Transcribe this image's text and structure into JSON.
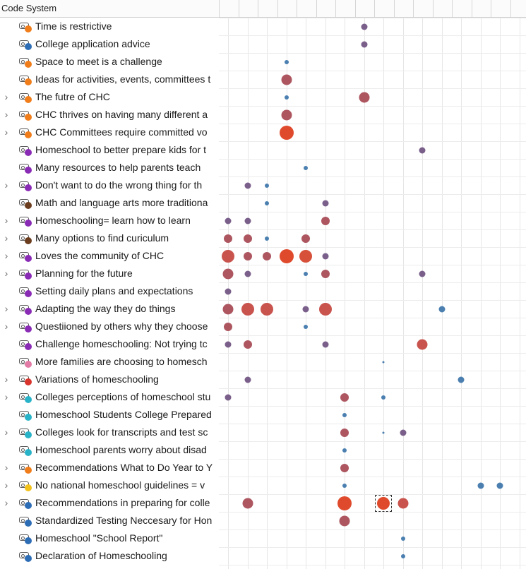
{
  "header": {
    "title": "Code System"
  },
  "colors": {
    "code_orange": "#f07d1a",
    "code_blue": "#2d6db5",
    "code_purple": "#8a2bb5",
    "code_brown": "#6b3d1e",
    "code_pink": "#e37aa6",
    "code_red": "#d9342b",
    "code_teal": "#29b3c8",
    "code_yellow": "#f2c21b",
    "bubble_gray_purple": "#7a5f8a",
    "bubble_brown_red": "#ad5660",
    "bubble_red": "#e04a2c",
    "bubble_blue": "#4a7fb0"
  },
  "rows": [
    {
      "label": "Time is restrictive",
      "expandable": false,
      "dot": "#f07d1a",
      "bubbles": [
        {
          "col": 7,
          "size": "sm",
          "color": "#7a5f8a"
        }
      ]
    },
    {
      "label": "College application advice",
      "expandable": false,
      "dot": "#2d6db5",
      "bubbles": [
        {
          "col": 7,
          "size": "sm",
          "color": "#7a5f8a"
        }
      ]
    },
    {
      "label": "Space to meet is a challenge",
      "expandable": false,
      "dot": "#f07d1a",
      "bubbles": [
        {
          "col": 3,
          "size": "xs",
          "color": "#4a7fb0"
        }
      ]
    },
    {
      "label": "Ideas for activities, events, committees t",
      "expandable": false,
      "dot": "#f07d1a",
      "bubbles": [
        {
          "col": 3,
          "size": "md",
          "color": "#ad5660"
        }
      ]
    },
    {
      "label": "The futre of CHC",
      "expandable": true,
      "dot": "#f07d1a",
      "bubbles": [
        {
          "col": 3,
          "size": "xs",
          "color": "#4a7fb0"
        },
        {
          "col": 7,
          "size": "md",
          "color": "#ad5660"
        }
      ]
    },
    {
      "label": "CHC thrives on having many different a",
      "expandable": true,
      "dot": "#f07d1a",
      "bubbles": [
        {
          "col": 3,
          "size": "md",
          "color": "#ad5660"
        }
      ]
    },
    {
      "label": "CHC Committees require committed vo",
      "expandable": true,
      "dot": "#f07d1a",
      "bubbles": [
        {
          "col": 3,
          "size": "lg",
          "color": "#e04a2c"
        }
      ]
    },
    {
      "label": "Homeschool to better prepare kids for t",
      "expandable": false,
      "dot": "#8a2bb5",
      "bubbles": [
        {
          "col": 10,
          "size": "sm",
          "color": "#7a5f8a"
        }
      ]
    },
    {
      "label": "Many resources to help parents teach",
      "expandable": false,
      "dot": "#8a2bb5",
      "bubbles": [
        {
          "col": 4,
          "size": "xs",
          "color": "#4a7fb0"
        }
      ]
    },
    {
      "label": "Don't want to do the wrong thing for th",
      "expandable": true,
      "dot": "#8a2bb5",
      "bubbles": [
        {
          "col": 1,
          "size": "sm",
          "color": "#7a5f8a"
        },
        {
          "col": 2,
          "size": "xs",
          "color": "#4a7fb0"
        }
      ]
    },
    {
      "label": "Math and language arts more traditiona",
      "expandable": false,
      "dot": "#6b3d1e",
      "bubbles": [
        {
          "col": 2,
          "size": "xs",
          "color": "#4a7fb0"
        },
        {
          "col": 5,
          "size": "sm",
          "color": "#7a5f8a"
        }
      ]
    },
    {
      "label": "Homeschooling= learn how to learn",
      "expandable": true,
      "dot": "#8a2bb5",
      "bubbles": [
        {
          "col": 0,
          "size": "sm",
          "color": "#7a5f8a"
        },
        {
          "col": 1,
          "size": "sm",
          "color": "#7a5f8a"
        },
        {
          "col": 5,
          "size": "sm2",
          "color": "#ad5660"
        }
      ]
    },
    {
      "label": "Many options to find curiculum",
      "expandable": true,
      "dot": "#6b3d1e",
      "bubbles": [
        {
          "col": 0,
          "size": "sm2",
          "color": "#ad5660"
        },
        {
          "col": 1,
          "size": "sm2",
          "color": "#ad5660"
        },
        {
          "col": 2,
          "size": "xs",
          "color": "#4a7fb0"
        },
        {
          "col": 4,
          "size": "sm2",
          "color": "#ad5660"
        }
      ]
    },
    {
      "label": "Loves the community of CHC",
      "expandable": true,
      "dot": "#8a2bb5",
      "bubbles": [
        {
          "col": 0,
          "size": "md2",
          "color": "#c9544e"
        },
        {
          "col": 1,
          "size": "sm2",
          "color": "#ad5660"
        },
        {
          "col": 2,
          "size": "sm2",
          "color": "#ad5660"
        },
        {
          "col": 3,
          "size": "lg",
          "color": "#e04a2c"
        },
        {
          "col": 4,
          "size": "md2",
          "color": "#d6503a"
        },
        {
          "col": 5,
          "size": "sm",
          "color": "#7a5f8a"
        }
      ]
    },
    {
      "label": "Planning for the future",
      "expandable": true,
      "dot": "#8a2bb5",
      "bubbles": [
        {
          "col": 0,
          "size": "md",
          "color": "#ad5660"
        },
        {
          "col": 1,
          "size": "sm",
          "color": "#7a5f8a"
        },
        {
          "col": 4,
          "size": "xs",
          "color": "#4a7fb0"
        },
        {
          "col": 5,
          "size": "sm2",
          "color": "#ad5660"
        },
        {
          "col": 10,
          "size": "sm",
          "color": "#7a5f8a"
        }
      ]
    },
    {
      "label": "Setting daily plans and expectations",
      "expandable": false,
      "dot": "#8a2bb5",
      "bubbles": [
        {
          "col": 0,
          "size": "sm",
          "color": "#7a5f8a"
        }
      ]
    },
    {
      "label": "Adapting the way they do things",
      "expandable": true,
      "dot": "#8a2bb5",
      "bubbles": [
        {
          "col": 0,
          "size": "md",
          "color": "#ad5660"
        },
        {
          "col": 1,
          "size": "md2",
          "color": "#c9544e"
        },
        {
          "col": 2,
          "size": "md2",
          "color": "#c9544e"
        },
        {
          "col": 4,
          "size": "sm",
          "color": "#7a5f8a"
        },
        {
          "col": 5,
          "size": "md2",
          "color": "#c9544e"
        },
        {
          "col": 11,
          "size": "sm",
          "color": "#4a7fb0"
        }
      ]
    },
    {
      "label": "Questiioned by others why they choose",
      "expandable": true,
      "dot": "#8a2bb5",
      "bubbles": [
        {
          "col": 0,
          "size": "sm2",
          "color": "#ad5660"
        },
        {
          "col": 4,
          "size": "xs",
          "color": "#4a7fb0"
        }
      ]
    },
    {
      "label": "Challenge homeschooling: Not trying tc",
      "expandable": false,
      "dot": "#8a2bb5",
      "bubbles": [
        {
          "col": 0,
          "size": "sm",
          "color": "#7a5f8a"
        },
        {
          "col": 1,
          "size": "sm2",
          "color": "#ad5660"
        },
        {
          "col": 5,
          "size": "sm",
          "color": "#7a5f8a"
        },
        {
          "col": 10,
          "size": "md",
          "color": "#c9544e"
        }
      ]
    },
    {
      "label": "More families are choosing to homesch",
      "expandable": false,
      "dot": "#e37aa6",
      "bubbles": [
        {
          "col": 8,
          "size": "xxs",
          "color": "#4a7fb0"
        }
      ]
    },
    {
      "label": "Variations of homeschooling",
      "expandable": true,
      "dot": "#d9342b",
      "bubbles": [
        {
          "col": 1,
          "size": "sm",
          "color": "#7a5f8a"
        },
        {
          "col": 12,
          "size": "sm",
          "color": "#4a7fb0"
        }
      ]
    },
    {
      "label": "Colleges perceptions of homeschool stu",
      "expandable": true,
      "dot": "#29b3c8",
      "bubbles": [
        {
          "col": 0,
          "size": "sm",
          "color": "#7a5f8a"
        },
        {
          "col": 6,
          "size": "sm2",
          "color": "#ad5660"
        },
        {
          "col": 8,
          "size": "xs",
          "color": "#4a7fb0"
        }
      ]
    },
    {
      "label": "Homeschool Students College Prepared",
      "expandable": false,
      "dot": "#29b3c8",
      "bubbles": [
        {
          "col": 6,
          "size": "xs",
          "color": "#4a7fb0"
        }
      ]
    },
    {
      "label": "Colleges look for transcripts and test sc",
      "expandable": true,
      "dot": "#29b3c8",
      "bubbles": [
        {
          "col": 6,
          "size": "sm2",
          "color": "#ad5660"
        },
        {
          "col": 8,
          "size": "xxs",
          "color": "#4a7fb0"
        },
        {
          "col": 9,
          "size": "sm",
          "color": "#7a5f8a"
        }
      ]
    },
    {
      "label": "Homeschool parents worry about disad",
      "expandable": false,
      "dot": "#29b3c8",
      "bubbles": [
        {
          "col": 6,
          "size": "xs",
          "color": "#4a7fb0"
        }
      ]
    },
    {
      "label": "Recommendations What to Do Year to Y",
      "expandable": true,
      "dot": "#f07d1a",
      "bubbles": [
        {
          "col": 6,
          "size": "sm2",
          "color": "#ad5660"
        }
      ]
    },
    {
      "label": "No national homeschool guidelines = v",
      "expandable": true,
      "dot": "#f2c21b",
      "bubbles": [
        {
          "col": 6,
          "size": "xs",
          "color": "#4a7fb0"
        },
        {
          "col": 13,
          "size": "sm",
          "color": "#4a7fb0"
        },
        {
          "col": 14,
          "size": "sm",
          "color": "#4a7fb0"
        }
      ]
    },
    {
      "label": "Recommendations in preparing for colle",
      "expandable": true,
      "dot": "#2d6db5",
      "bubbles": [
        {
          "col": 1,
          "size": "md",
          "color": "#ad5660"
        },
        {
          "col": 6,
          "size": "lg",
          "color": "#e04a2c"
        },
        {
          "col": 8,
          "size": "md2",
          "color": "#e04a2c",
          "selected": true
        },
        {
          "col": 9,
          "size": "md",
          "color": "#c9544e"
        }
      ]
    },
    {
      "label": "Standardized Testing Neccesary for Hon",
      "expandable": false,
      "dot": "#2d6db5",
      "bubbles": [
        {
          "col": 6,
          "size": "md",
          "color": "#ad5660"
        }
      ]
    },
    {
      "label": "Homeschool \"School Report\"",
      "expandable": false,
      "dot": "#2d6db5",
      "bubbles": [
        {
          "col": 9,
          "size": "xs",
          "color": "#4a7fb0"
        }
      ]
    },
    {
      "label": "Declaration of Homeschooling",
      "expandable": false,
      "dot": "#2d6db5",
      "bubbles": [
        {
          "col": 9,
          "size": "xs",
          "color": "#4a7fb0"
        }
      ]
    }
  ]
}
